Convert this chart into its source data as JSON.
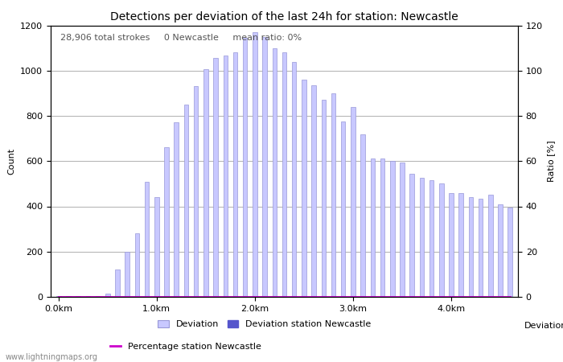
{
  "title": "Detections per deviation of the last 24h for station: Newcastle",
  "ylabel_left": "Count",
  "ylabel_right": "Ratio [%]",
  "xlabel": "Deviations",
  "annotation": "28,906 total strokes     0 Newcastle     mean ratio: 0%",
  "watermark": "www.lightningmaps.org",
  "ylim_left": [
    0,
    1200
  ],
  "ylim_right": [
    0,
    120
  ],
  "yticks_left": [
    0,
    200,
    400,
    600,
    800,
    1000,
    1200
  ],
  "yticks_right": [
    0,
    20,
    40,
    60,
    80,
    100,
    120
  ],
  "xtick_labels": [
    "0.0km",
    "1.0km",
    "2.0km",
    "3.0km",
    "4.0km"
  ],
  "xtick_positions": [
    0,
    10,
    20,
    30,
    40
  ],
  "bar_color": "#c8c8ff",
  "bar_edge_color": "#9898d8",
  "station_bar_color": "#5555cc",
  "percentage_line_color": "#cc00cc",
  "bar_values": [
    5,
    2,
    2,
    2,
    2,
    15,
    120,
    200,
    280,
    510,
    440,
    660,
    770,
    850,
    930,
    1005,
    1055,
    1065,
    1080,
    1145,
    1170,
    1150,
    1100,
    1080,
    1040,
    960,
    935,
    870,
    900,
    775,
    840,
    720,
    610,
    610,
    600,
    595,
    545,
    525,
    515,
    500,
    460,
    460,
    440,
    435,
    450,
    410,
    395
  ],
  "station_bar_values": [
    0,
    0,
    0,
    0,
    0,
    0,
    0,
    0,
    0,
    0,
    0,
    0,
    0,
    0,
    0,
    0,
    0,
    0,
    0,
    0,
    0,
    0,
    0,
    0,
    0,
    0,
    0,
    0,
    0,
    0,
    0,
    0,
    0,
    0,
    0,
    0,
    0,
    0,
    0,
    0,
    0,
    0,
    0,
    0,
    0,
    0,
    0
  ],
  "percentage_values": [
    0,
    0,
    0,
    0,
    0,
    0,
    0,
    0,
    0,
    0,
    0,
    0,
    0,
    0,
    0,
    0,
    0,
    0,
    0,
    0,
    0,
    0,
    0,
    0,
    0,
    0,
    0,
    0,
    0,
    0,
    0,
    0,
    0,
    0,
    0,
    0,
    0,
    0,
    0,
    0,
    0,
    0,
    0,
    0,
    0,
    0,
    0
  ],
  "n_bars": 47,
  "bar_width": 0.45,
  "grid_color": "#b0b0b0",
  "background_color": "#ffffff",
  "title_fontsize": 10,
  "label_fontsize": 8,
  "tick_fontsize": 8,
  "annotation_fontsize": 8,
  "legend_fontsize": 8
}
